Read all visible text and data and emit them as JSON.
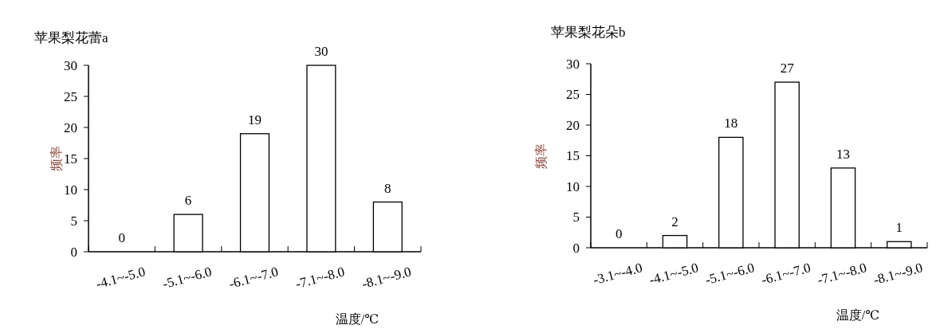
{
  "chart_data": [
    {
      "type": "bar",
      "title": "苹果梨花蕾a",
      "xlabel": "温度/℃",
      "ylabel": "频率",
      "categories": [
        "-4.1~-5.0",
        "-5.1~-6.0",
        "-6.1~-7.0",
        "-7.1~-8.0",
        "-8.1~-9.0"
      ],
      "values": [
        0,
        6,
        19,
        30,
        8
      ],
      "color": "#ffffff",
      "ylim": [
        0,
        30
      ],
      "yticks": [
        0,
        5,
        10,
        15,
        20,
        25,
        30
      ],
      "data_labels": true
    },
    {
      "type": "bar",
      "title": "苹果梨花朵b",
      "xlabel": "温度/℃",
      "ylabel": "频率",
      "categories": [
        "-3.1~-4.0",
        "-4.1~-5.0",
        "-5.1~-6.0",
        "-6.1~-7.0",
        "-7.1~-8.0",
        "-8.1~-9.0"
      ],
      "values": [
        0,
        2,
        18,
        27,
        13,
        1
      ],
      "color": "#ffffff",
      "ylim": [
        0,
        30
      ],
      "yticks": [
        0,
        5,
        10,
        15,
        20,
        25,
        30
      ],
      "data_labels": true
    }
  ]
}
